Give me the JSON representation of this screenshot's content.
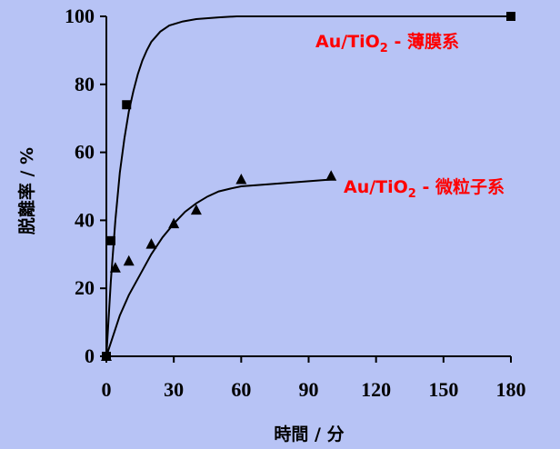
{
  "chart_data": {
    "type": "scatter",
    "xlabel": "時間 / 分",
    "ylabel": "脱離率 / %",
    "xlim": [
      0,
      180
    ],
    "ylim": [
      0,
      100
    ],
    "x_ticks": [
      0,
      30,
      60,
      90,
      120,
      150,
      180
    ],
    "y_ticks": [
      0,
      20,
      40,
      60,
      80,
      100
    ],
    "grid": false,
    "series": [
      {
        "name": "Au/TiO2 - 薄膜系",
        "label_main": "Au/TiO",
        "label_sub": "2",
        "label_rest": " - 薄膜系",
        "marker": "square",
        "points": [
          {
            "x": 0,
            "y": 0
          },
          {
            "x": 2,
            "y": 34
          },
          {
            "x": 9,
            "y": 74
          },
          {
            "x": 180,
            "y": 100
          }
        ],
        "fit": [
          {
            "x": 0,
            "y": 0
          },
          {
            "x": 2,
            "y": 22
          },
          {
            "x": 4,
            "y": 40
          },
          {
            "x": 6,
            "y": 54
          },
          {
            "x": 8,
            "y": 64
          },
          {
            "x": 10,
            "y": 72
          },
          {
            "x": 12,
            "y": 78
          },
          {
            "x": 14,
            "y": 83
          },
          {
            "x": 16,
            "y": 87
          },
          {
            "x": 18,
            "y": 90
          },
          {
            "x": 20,
            "y": 92.5
          },
          {
            "x": 24,
            "y": 95.5
          },
          {
            "x": 28,
            "y": 97.3
          },
          {
            "x": 34,
            "y": 98.5
          },
          {
            "x": 40,
            "y": 99.2
          },
          {
            "x": 50,
            "y": 99.7
          },
          {
            "x": 58,
            "y": 100
          },
          {
            "x": 180,
            "y": 100
          }
        ]
      },
      {
        "name": "Au/TiO2 - 微粒子系",
        "label_main": "Au/TiO",
        "label_sub": "2",
        "label_rest": " - 微粒子系",
        "marker": "triangle",
        "points": [
          {
            "x": 0,
            "y": 0
          },
          {
            "x": 4,
            "y": 26
          },
          {
            "x": 10,
            "y": 28
          },
          {
            "x": 20,
            "y": 33
          },
          {
            "x": 30,
            "y": 39
          },
          {
            "x": 40,
            "y": 43
          },
          {
            "x": 60,
            "y": 52
          },
          {
            "x": 100,
            "y": 53
          }
        ],
        "fit": [
          {
            "x": 0,
            "y": 0
          },
          {
            "x": 3,
            "y": 6
          },
          {
            "x": 6,
            "y": 12
          },
          {
            "x": 10,
            "y": 18
          },
          {
            "x": 15,
            "y": 24
          },
          {
            "x": 20,
            "y": 30
          },
          {
            "x": 25,
            "y": 35
          },
          {
            "x": 30,
            "y": 39
          },
          {
            "x": 35,
            "y": 42.5
          },
          {
            "x": 40,
            "y": 45
          },
          {
            "x": 45,
            "y": 47
          },
          {
            "x": 50,
            "y": 48.5
          },
          {
            "x": 55,
            "y": 49.3
          },
          {
            "x": 60,
            "y": 50
          },
          {
            "x": 70,
            "y": 50.5
          },
          {
            "x": 80,
            "y": 51
          },
          {
            "x": 90,
            "y": 51.5
          },
          {
            "x": 100,
            "y": 52
          }
        ]
      }
    ]
  }
}
